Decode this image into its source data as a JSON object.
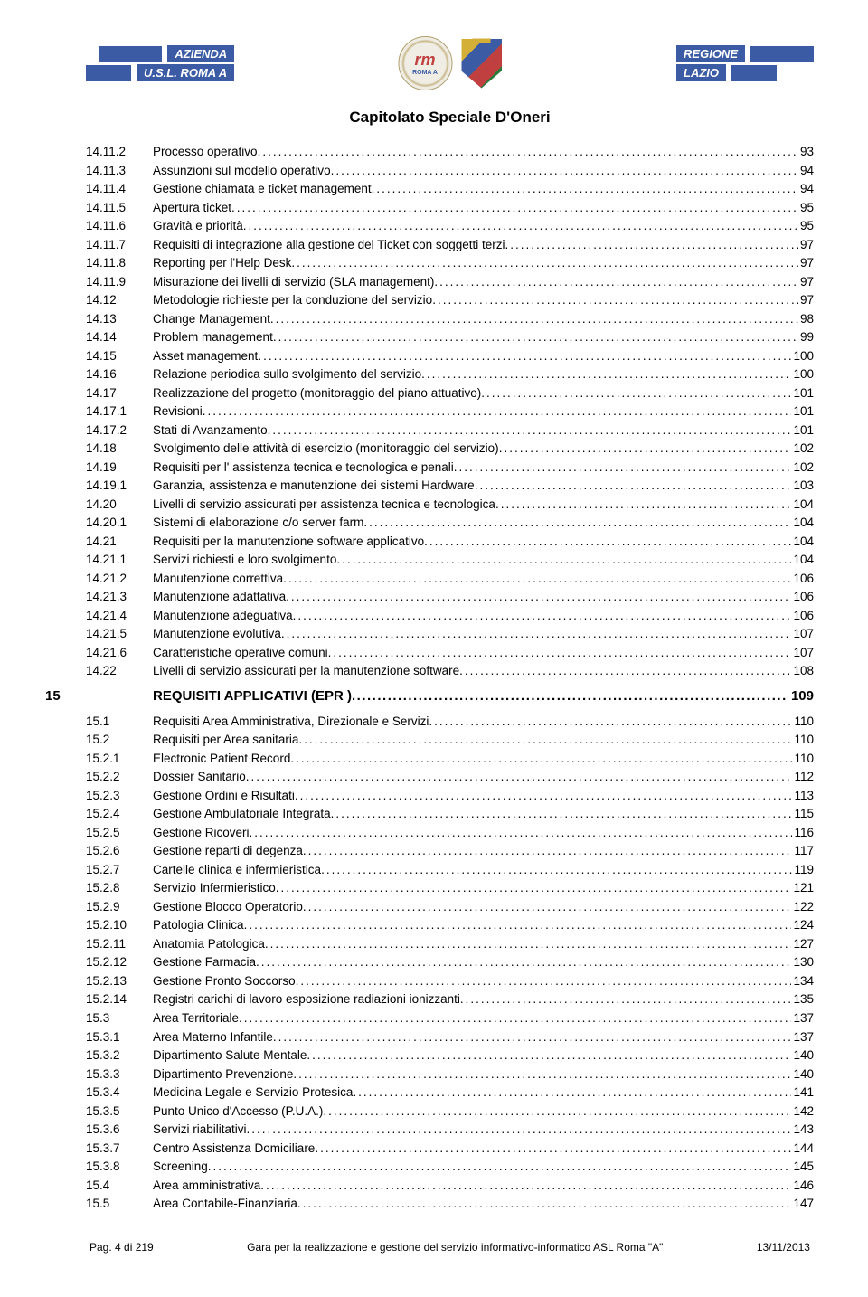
{
  "header": {
    "left_label_1": "AZIENDA",
    "left_label_2": "U.S.L. ROMA A",
    "badge_main": "rm",
    "badge_sub": "ROMA A",
    "right_label_1": "REGIONE",
    "right_label_2": "LAZIO",
    "doc_title": "Capitolato Speciale D'Oneri"
  },
  "toc": [
    {
      "num": "14.11.2",
      "label": "Processo operativo",
      "page": "93"
    },
    {
      "num": "14.11.3",
      "label": "Assunzioni sul modello operativo",
      "page": "94"
    },
    {
      "num": "14.11.4",
      "label": "Gestione chiamata e ticket management",
      "page": "94"
    },
    {
      "num": "14.11.5",
      "label": "Apertura ticket",
      "page": "95"
    },
    {
      "num": "14.11.6",
      "label": "Gravità e priorità",
      "page": "95"
    },
    {
      "num": "14.11.7",
      "label": "Requisiti di integrazione alla gestione del Ticket con soggetti terzi",
      "page": "97"
    },
    {
      "num": "14.11.8",
      "label": "Reporting per l'Help Desk",
      "page": "97"
    },
    {
      "num": "14.11.9",
      "label": "Misurazione dei livelli di servizio (SLA management)",
      "page": "97"
    },
    {
      "num": "14.12",
      "label": "Metodologie richieste per la conduzione del servizio",
      "page": "97"
    },
    {
      "num": "14.13",
      "label": "Change Management",
      "page": "98"
    },
    {
      "num": "14.14",
      "label": "Problem management",
      "page": "99"
    },
    {
      "num": "14.15",
      "label": "Asset management",
      "page": "100"
    },
    {
      "num": "14.16",
      "label": "Relazione periodica sullo svolgimento del servizio",
      "page": "100"
    },
    {
      "num": "14.17",
      "label": "Realizzazione del progetto (monitoraggio del piano attuativo)",
      "page": "101"
    },
    {
      "num": "14.17.1",
      "label": "Revisioni",
      "page": "101"
    },
    {
      "num": "14.17.2",
      "label": "Stati di Avanzamento",
      "page": "101"
    },
    {
      "num": "14.18",
      "label": "Svolgimento delle attività di esercizio (monitoraggio del servizio)",
      "page": "102"
    },
    {
      "num": "14.19",
      "label": "Requisiti per l' assistenza tecnica e tecnologica e penali",
      "page": "102"
    },
    {
      "num": "14.19.1",
      "label": "Garanzia, assistenza e manutenzione dei sistemi Hardware",
      "page": "103"
    },
    {
      "num": "14.20",
      "label": "Livelli di servizio assicurati per assistenza tecnica e tecnologica",
      "page": "104"
    },
    {
      "num": "14.20.1",
      "label": "Sistemi di elaborazione c/o server farm",
      "page": "104"
    },
    {
      "num": "14.21",
      "label": "Requisiti per la manutenzione software applicativo",
      "page": "104"
    },
    {
      "num": "14.21.1",
      "label": "Servizi richiesti e loro svolgimento",
      "page": "104"
    },
    {
      "num": "14.21.2",
      "label": "Manutenzione correttiva",
      "page": "106"
    },
    {
      "num": "14.21.3",
      "label": "Manutenzione adattativa",
      "page": "106"
    },
    {
      "num": "14.21.4",
      "label": "Manutenzione adeguativa",
      "page": "106"
    },
    {
      "num": "14.21.5",
      "label": "Manutenzione evolutiva",
      "page": "107"
    },
    {
      "num": "14.21.6",
      "label": "Caratteristiche operative comuni",
      "page": "107"
    },
    {
      "num": "14.22",
      "label": "Livelli di servizio assicurati per la manutenzione software",
      "page": "108"
    }
  ],
  "section": {
    "num": "15",
    "label": "REQUISITI APPLICATIVI (EPR )",
    "page": "109"
  },
  "toc2": [
    {
      "num": "15.1",
      "label": "Requisiti Area Amministrativa, Direzionale e Servizi",
      "page": "110"
    },
    {
      "num": "15.2",
      "label": "Requisiti per Area sanitaria",
      "page": "110"
    },
    {
      "num": "15.2.1",
      "label": "Electronic Patient Record",
      "page": "110"
    },
    {
      "num": "15.2.2",
      "label": "Dossier Sanitario",
      "page": "112"
    },
    {
      "num": "15.2.3",
      "label": "Gestione Ordini e Risultati",
      "page": "113"
    },
    {
      "num": "15.2.4",
      "label": "Gestione Ambulatoriale Integrata",
      "page": "115"
    },
    {
      "num": "15.2.5",
      "label": "Gestione Ricoveri",
      "page": "116"
    },
    {
      "num": "15.2.6",
      "label": "Gestione reparti di degenza",
      "page": "117"
    },
    {
      "num": "15.2.7",
      "label": "Cartelle clinica e infermieristica",
      "page": "119"
    },
    {
      "num": "15.2.8",
      "label": "Servizio Infermieristico",
      "page": "121"
    },
    {
      "num": "15.2.9",
      "label": "Gestione Blocco Operatorio",
      "page": "122"
    },
    {
      "num": "15.2.10",
      "label": "Patologia Clinica",
      "page": "124"
    },
    {
      "num": "15.2.11",
      "label": "Anatomia Patologica",
      "page": "127"
    },
    {
      "num": "15.2.12",
      "label": "Gestione Farmacia",
      "page": "130"
    },
    {
      "num": "15.2.13",
      "label": "Gestione Pronto Soccorso",
      "page": "134"
    },
    {
      "num": "15.2.14",
      "label": "Registri carichi di lavoro esposizione radiazioni ionizzanti",
      "page": "135"
    },
    {
      "num": "15.3",
      "label": "Area Territoriale",
      "page": "137"
    },
    {
      "num": "15.3.1",
      "label": "Area Materno Infantile",
      "page": "137"
    },
    {
      "num": "15.3.2",
      "label": "Dipartimento Salute Mentale",
      "page": "140"
    },
    {
      "num": "15.3.3",
      "label": "Dipartimento Prevenzione",
      "page": "140"
    },
    {
      "num": "15.3.4",
      "label": "Medicina Legale e Servizio Protesica",
      "page": "141"
    },
    {
      "num": "15.3.5",
      "label": "Punto Unico d'Accesso (P.U.A.)",
      "page": "142"
    },
    {
      "num": "15.3.6",
      "label": "Servizi riabilitativi",
      "page": "143"
    },
    {
      "num": "15.3.7",
      "label": "Centro Assistenza Domiciliare",
      "page": "144"
    },
    {
      "num": "15.3.8",
      "label": "Screening",
      "page": "145"
    },
    {
      "num": "15.4",
      "label": "Area amministrativa",
      "page": "146"
    },
    {
      "num": "15.5",
      "label": "Area Contabile-Finanziaria",
      "page": "147"
    }
  ],
  "footer": {
    "left": "Pag. 4 di 219",
    "center": "Gara per la realizzazione e gestione del servizio informativo-informatico ASL Roma \"A\"",
    "right": "13/11/2013"
  },
  "colors": {
    "bar_blue": "#3b5ba5",
    "text": "#000000",
    "background": "#ffffff"
  }
}
